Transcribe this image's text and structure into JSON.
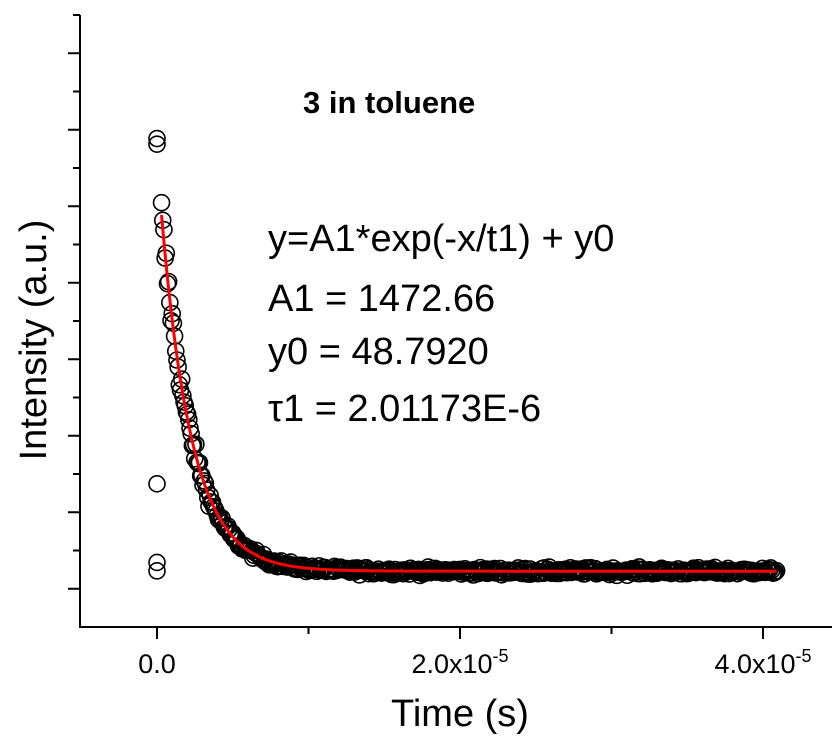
{
  "chart_data": {
    "type": "scatter",
    "title": "3 in toluene",
    "xlabel": "Time (s)",
    "ylabel": "Intensity (a.u.)",
    "xlim": [
      -5e-06,
      4.4e-05
    ],
    "ylim": [
      -150,
      2030
    ],
    "x_ticks": [
      {
        "value": 0,
        "mant": "0.0",
        "exp": ""
      },
      {
        "value": 2e-05,
        "mant": "2.0x10",
        "exp": "-5"
      },
      {
        "value": 4e-05,
        "mant": "4.0x10",
        "exp": "-5"
      }
    ],
    "y_ticklabels_visible": false,
    "grid": false,
    "fit": {
      "model": "y=A1*exp(-x/t1) + y0",
      "A1": 1472.66,
      "y0": 48.792,
      "t1": 2.01173e-06,
      "x_start": 3e-07,
      "x_end": 4.09e-05,
      "color": "#ff0000"
    },
    "annotation": {
      "lines": [
        "y=A1*exp(-x/t1) + y0",
        "A1 = 1472.66",
        "y0 = 48.7920",
        "τ1 = 2.01173E-6"
      ]
    },
    "series": [
      {
        "marker": "open-circle",
        "x_start": 3e-07,
        "x_end": 4.09e-05,
        "n_points": 520,
        "pre_trigger": [
          {
            "x": 0,
            "y": 360
          },
          {
            "x": 0,
            "y": 80
          },
          {
            "x": 0,
            "y": 50
          },
          {
            "x": 0,
            "y": 1590
          },
          {
            "x": 0,
            "y": 1570
          }
        ]
      }
    ]
  }
}
